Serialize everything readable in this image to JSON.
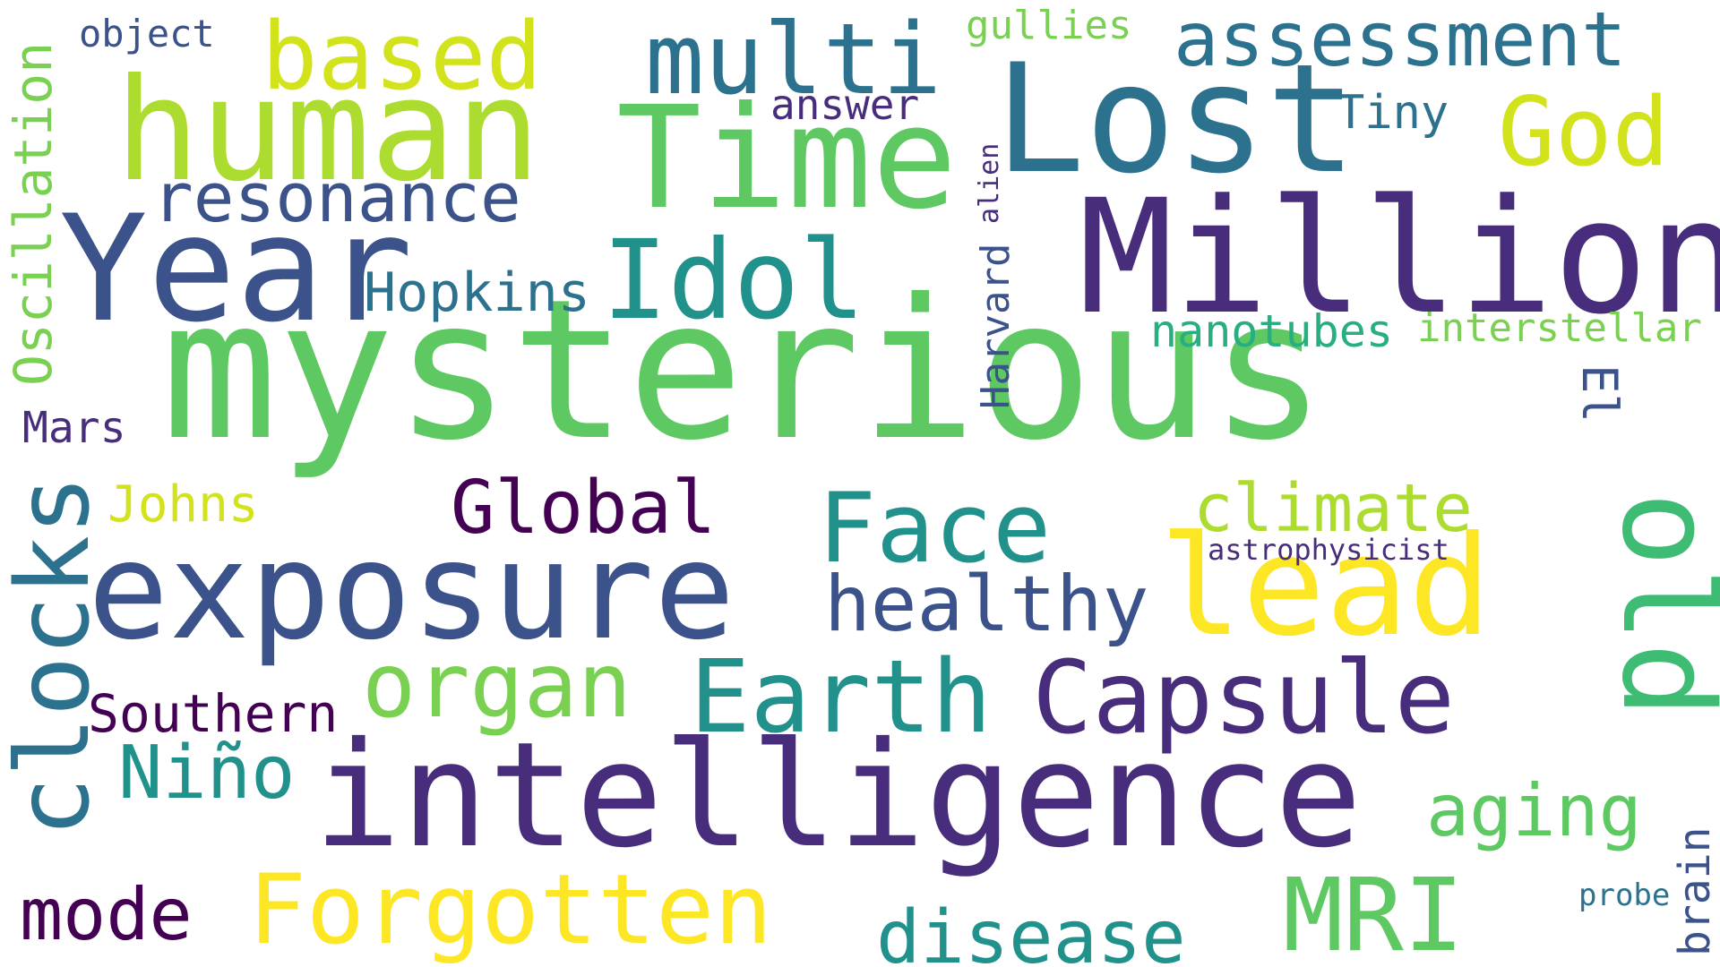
{
  "colors": {
    "background": "#ffffff",
    "palette": [
      "#440154",
      "#472d7b",
      "#3b528b",
      "#2c728e",
      "#21918c",
      "#28ae80",
      "#5ec962",
      "#addc30",
      "#fde725"
    ]
  },
  "words": [
    {
      "text": "mysterious",
      "color": "#5ec962",
      "orientation": "horizontal"
    },
    {
      "text": "intelligence",
      "color": "#472d7b",
      "orientation": "horizontal"
    },
    {
      "text": "exposure",
      "color": "#3b528b",
      "orientation": "horizontal"
    },
    {
      "text": "Million",
      "color": "#472d7b",
      "orientation": "horizontal"
    },
    {
      "text": "Year",
      "color": "#3b528b",
      "orientation": "horizontal"
    },
    {
      "text": "Lost",
      "color": "#2c728e",
      "orientation": "horizontal"
    },
    {
      "text": "human",
      "color": "#addc30",
      "orientation": "horizontal"
    },
    {
      "text": "Time",
      "color": "#5ec962",
      "orientation": "horizontal"
    },
    {
      "text": "old",
      "color": "#3fbc73",
      "orientation": "vertical"
    },
    {
      "text": "lead",
      "color": "#fde725",
      "orientation": "horizontal"
    },
    {
      "text": "clocks",
      "color": "#2c728e",
      "orientation": "vertical"
    },
    {
      "text": "Capsule",
      "color": "#472d7b",
      "orientation": "horizontal"
    },
    {
      "text": "Earth",
      "color": "#21918c",
      "orientation": "horizontal"
    },
    {
      "text": "Idol",
      "color": "#21918c",
      "orientation": "horizontal"
    },
    {
      "text": "multi",
      "color": "#2c728e",
      "orientation": "horizontal"
    },
    {
      "text": "based",
      "color": "#d2e21b",
      "orientation": "horizontal"
    },
    {
      "text": "Forgotten",
      "color": "#fde725",
      "orientation": "horizontal"
    },
    {
      "text": "Face",
      "color": "#21918c",
      "orientation": "horizontal"
    },
    {
      "text": "organ",
      "color": "#7ad151",
      "orientation": "horizontal"
    },
    {
      "text": "MRI",
      "color": "#5ec962",
      "orientation": "horizontal"
    },
    {
      "text": "God",
      "color": "#d2e21b",
      "orientation": "horizontal"
    },
    {
      "text": "healthy",
      "color": "#3b528b",
      "orientation": "horizontal"
    },
    {
      "text": "resonance",
      "color": "#3b528b",
      "orientation": "horizontal"
    },
    {
      "text": "assessment",
      "color": "#2c728e",
      "orientation": "horizontal"
    },
    {
      "text": "climate",
      "color": "#addc30",
      "orientation": "horizontal"
    },
    {
      "text": "aging",
      "color": "#5ec962",
      "orientation": "horizontal"
    },
    {
      "text": "disease",
      "color": "#21918c",
      "orientation": "horizontal"
    },
    {
      "text": "Global",
      "color": "#440154",
      "orientation": "horizontal"
    },
    {
      "text": "Niño",
      "color": "#21918c",
      "orientation": "horizontal"
    },
    {
      "text": "mode",
      "color": "#440154",
      "orientation": "horizontal"
    },
    {
      "text": "Hopkins",
      "color": "#2c728e",
      "orientation": "horizontal"
    },
    {
      "text": "Oscillation",
      "color": "#7ad151",
      "orientation": "vertical"
    },
    {
      "text": "Southern",
      "color": "#440154",
      "orientation": "horizontal"
    },
    {
      "text": "nanotubes",
      "color": "#28ae80",
      "orientation": "horizontal"
    },
    {
      "text": "interstellar",
      "color": "#7ad151",
      "orientation": "horizontal"
    },
    {
      "text": "El",
      "color": "#3b528b",
      "orientation": "vertical"
    },
    {
      "text": "Harvard",
      "color": "#3b528b",
      "orientation": "vertical"
    },
    {
      "text": "Johns",
      "color": "#d2e21b",
      "orientation": "horizontal"
    },
    {
      "text": "Mars",
      "color": "#472d7b",
      "orientation": "horizontal"
    },
    {
      "text": "Tiny",
      "color": "#2c728e",
      "orientation": "horizontal"
    },
    {
      "text": "answer",
      "color": "#472d7b",
      "orientation": "horizontal"
    },
    {
      "text": "gullies",
      "color": "#7ad151",
      "orientation": "horizontal"
    },
    {
      "text": "object",
      "color": "#3b528b",
      "orientation": "horizontal"
    },
    {
      "text": "alien",
      "color": "#472d7b",
      "orientation": "vertical"
    },
    {
      "text": "astrophysicist",
      "color": "#472d7b",
      "orientation": "horizontal"
    },
    {
      "text": "brain",
      "color": "#3b528b",
      "orientation": "vertical"
    },
    {
      "text": "probe",
      "color": "#2c728e",
      "orientation": "horizontal"
    }
  ]
}
